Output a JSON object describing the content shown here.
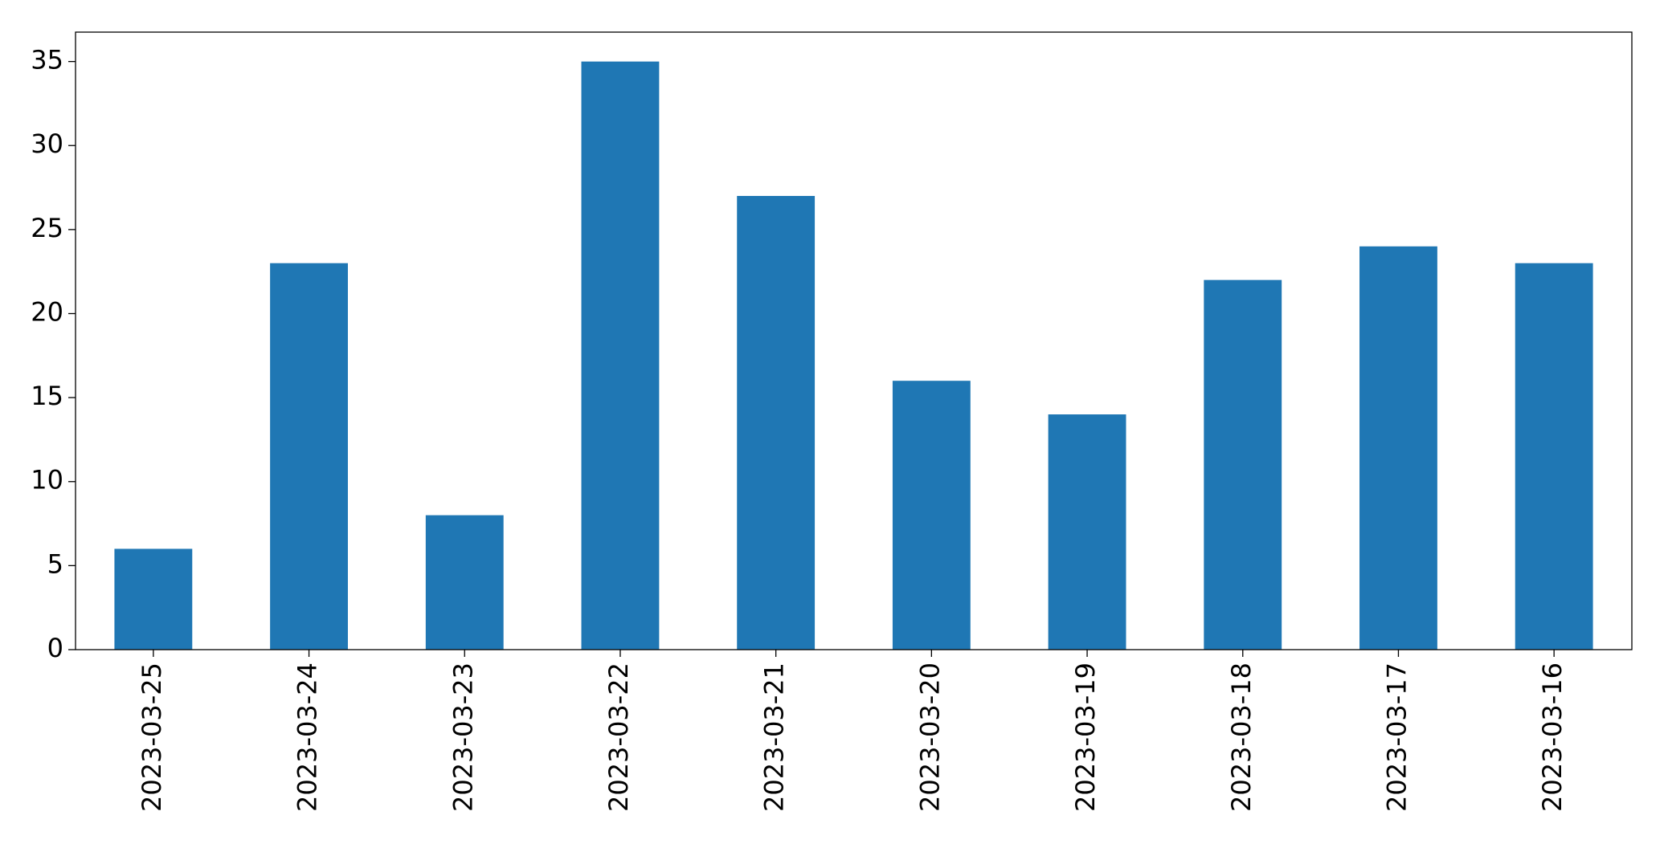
{
  "chart_data": {
    "type": "bar",
    "categories": [
      "2023-03-25",
      "2023-03-24",
      "2023-03-23",
      "2023-03-22",
      "2023-03-21",
      "2023-03-20",
      "2023-03-19",
      "2023-03-18",
      "2023-03-17",
      "2023-03-16"
    ],
    "values": [
      6,
      23,
      8,
      35,
      27,
      16,
      14,
      22,
      24,
      23
    ],
    "color": "#1f77b4",
    "ylim": [
      0,
      36.75
    ],
    "yticks": [
      0,
      5,
      10,
      15,
      20,
      25,
      30,
      35
    ],
    "grid": false
  }
}
